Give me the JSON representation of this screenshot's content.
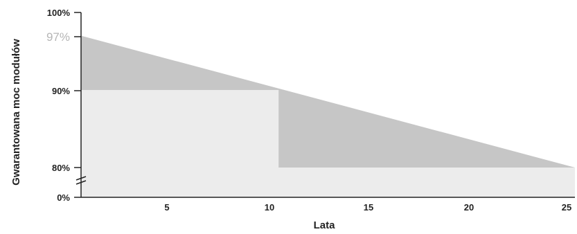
{
  "chart_data": {
    "type": "area",
    "xlabel": "Lata",
    "ylabel": "Gwarantowana moc modułów",
    "xlim": [
      0,
      25
    ],
    "x_ticks": [
      "5",
      "10",
      "15",
      "20",
      "25"
    ],
    "y_ticks": [
      "0%",
      "80%",
      "90%",
      "100%"
    ],
    "highlight_label": "97%",
    "axis_break": true,
    "grid": false,
    "series": [
      {
        "kind": "linear-warranty",
        "x": [
          0,
          25
        ],
        "y": [
          97,
          80
        ],
        "color": "#c6c6c6"
      },
      {
        "kind": "step-warranty",
        "x": [
          0,
          10,
          10,
          25
        ],
        "y": [
          90,
          90,
          80,
          80
        ],
        "color": "#ececec"
      }
    ]
  }
}
